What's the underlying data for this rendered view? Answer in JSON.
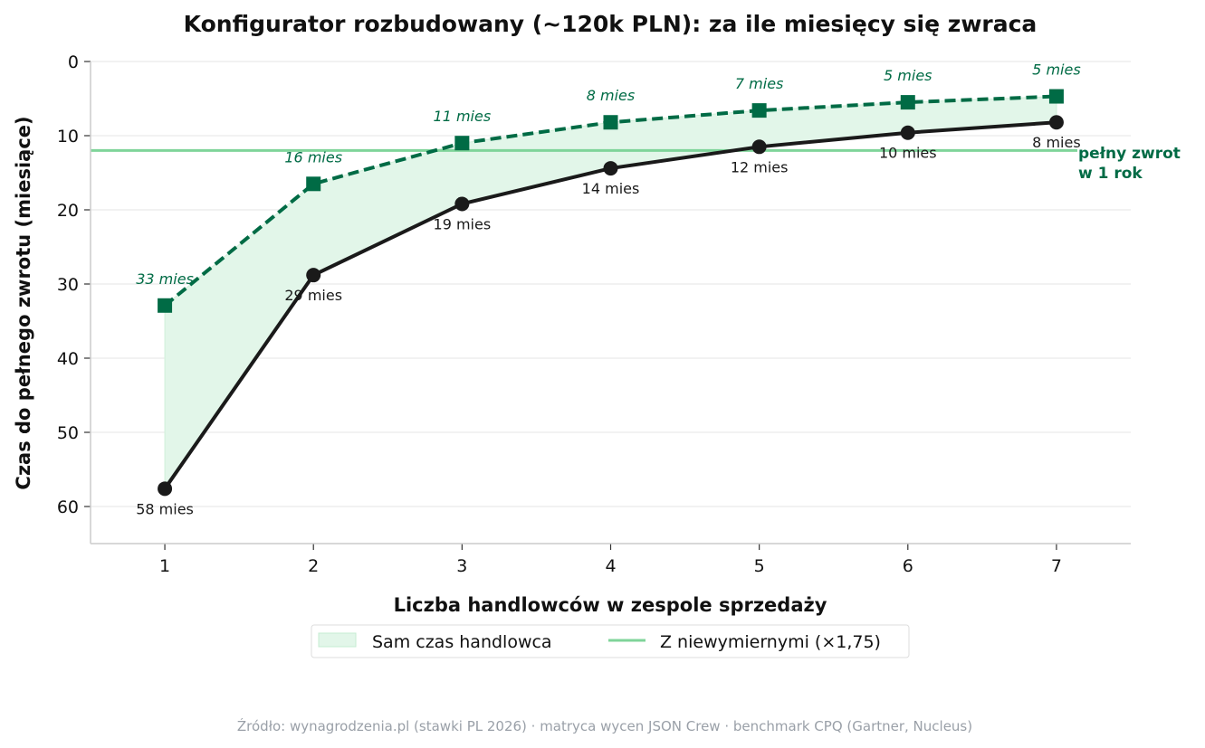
{
  "chart_data": {
    "type": "line",
    "title": "Konfigurator rozbudowany (~120k PLN): za ile miesięcy się zwraca",
    "xlabel": "Liczba handlowców w zespole sprzedaży",
    "ylabel": "Czas do pełnego zwrotu (miesiące)",
    "x": [
      1,
      2,
      3,
      4,
      5,
      6,
      7
    ],
    "xticks": [
      "1",
      "2",
      "3",
      "4",
      "5",
      "6",
      "7"
    ],
    "xlim": [
      0.5,
      7.5
    ],
    "ylim": [
      65,
      0
    ],
    "y_inverted": true,
    "yticks": [
      "0",
      "10",
      "20",
      "30",
      "40",
      "50",
      "60"
    ],
    "grid": "horizontal",
    "series": [
      {
        "values": [
          57.6,
          28.8,
          19.2,
          14.4,
          11.5,
          9.6,
          8.2
        ],
        "labels": [
          "58 mies",
          "29 mies",
          "19 mies",
          "14 mies",
          "12 mies",
          "10 mies",
          "8 mies"
        ],
        "color": "#1a1a1a",
        "style": "solid",
        "marker": "circle"
      },
      {
        "values": [
          32.9,
          16.5,
          11.0,
          8.2,
          6.6,
          5.5,
          4.7
        ],
        "labels": [
          "33 mies",
          "16 mies",
          "11 mies",
          "8 mies",
          "7 mies",
          "5 mies",
          "5 mies"
        ],
        "color": "#006b45",
        "style": "dashed",
        "marker": "square"
      }
    ],
    "fill_color": "#e2f6e9",
    "reference_line": {
      "y": 12,
      "color": "#7fd49a",
      "label_line1": "pełny zwrot",
      "label_line2": "w 1 rok",
      "label_color": "#006b45"
    },
    "legend": {
      "placement": "bottom",
      "entries": [
        {
          "label": "Sam czas handlowca",
          "kind": "patch"
        },
        {
          "label": "Z niewymiernymi (×1,75)",
          "kind": "line"
        }
      ]
    },
    "source": "Źródło: wynagrodzenia.pl (stawki PL 2026) · matryca wycen JSON Crew · benchmark CPQ (Gartner, Nucleus)"
  }
}
